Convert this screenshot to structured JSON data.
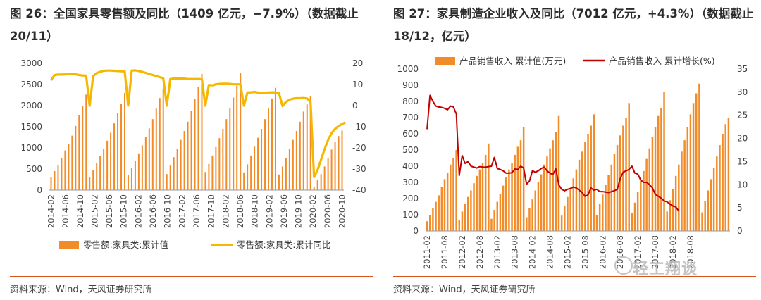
{
  "left": {
    "title": "图 26：全国家具零售额及同比（1409 亿元，−7.9%）（数据截止 20/11）",
    "source": "资料来源：Wind，天风证券研究所"
  },
  "right": {
    "title": "图 27：家具制造企业收入及同比（7012 亿元，+4.3%）（数据截止 18/12，亿元）",
    "source": "资料来源：Wind，天风证券研究所"
  },
  "watermark": "轻工翔谈",
  "chart_data": [
    {
      "type": "bar+line",
      "x_tick_labels": [
        "2014-02",
        "2014-06",
        "2014-10",
        "2015-02",
        "2015-06",
        "2015-10",
        "2016-02",
        "2016-06",
        "2016-10",
        "2017-02",
        "2017-06",
        "2017-10",
        "2018-02",
        "2018-06",
        "2018-10",
        "2019-02",
        "2019-06",
        "2019-10",
        "2020-02",
        "2020-06",
        "2020-10"
      ],
      "y_left_ticks": [
        "0",
        "500",
        "1000",
        "1500",
        "2000",
        "2500",
        "3000"
      ],
      "y_right_ticks": [
        "-40",
        "-30",
        "-20",
        "-10",
        "0",
        "10",
        "20"
      ],
      "ylim_left": [
        0,
        3000
      ],
      "ylim_right": [
        -40,
        20
      ],
      "series": [
        {
          "name": "零售额:家具类:累计值",
          "kind": "bar",
          "axis": "left",
          "color": "#f28c28",
          "values": [
            300,
            450,
            600,
            760,
            940,
            1100,
            1290,
            1520,
            1780,
            1990,
            2260,
            310,
            470,
            640,
            800,
            980,
            1170,
            1360,
            1580,
            1820,
            2050,
            2300,
            350,
            520,
            690,
            870,
            1060,
            1250,
            1460,
            1680,
            1930,
            2180,
            2400,
            380,
            580,
            780,
            980,
            1190,
            1400,
            1620,
            1870,
            2150,
            2450,
            2750,
            430,
            620,
            820,
            1020,
            1230,
            1450,
            1680,
            1940,
            2190,
            2470,
            2780,
            420,
            610,
            820,
            1030,
            1240,
            1450,
            1680,
            1930,
            2170,
            2420,
            370,
            560,
            760,
            970,
            1190,
            1400,
            1620,
            1860,
            2030,
            2220,
            80,
            250,
            380,
            560,
            760,
            960,
            1140,
            1280,
            1409
          ]
        },
        {
          "name": "零售额:家具类:累计同比",
          "kind": "line",
          "axis": "right",
          "color": "#f5b800",
          "values": [
            12,
            14.5,
            14.7,
            14.7,
            14.8,
            15,
            15,
            14.8,
            14.5,
            14.3,
            14.2,
            0,
            14,
            15.4,
            16,
            16.5,
            16.6,
            16.6,
            16.5,
            16.4,
            16.3,
            16.2,
            0,
            16.6,
            16.7,
            16.4,
            16,
            15.5,
            15,
            14.5,
            14,
            13.5,
            13,
            0,
            12.6,
            12.8,
            12.8,
            12.8,
            12.8,
            12.6,
            12.6,
            12.6,
            12.6,
            12.5,
            0,
            9.8,
            9.6,
            10.1,
            10.3,
            10.4,
            10.4,
            10.3,
            10.1,
            10.1,
            10.1,
            0,
            6.2,
            6.3,
            6.5,
            6.2,
            6.1,
            6.1,
            6.2,
            6.3,
            6.2,
            5.9,
            -0.2,
            1.8,
            2.8,
            3.3,
            3.5,
            3.5,
            3.6,
            3.4,
            1.8,
            -33.8,
            -30.5,
            -25.6,
            -20.6,
            -16.3,
            -13,
            -11,
            -9.7,
            -8.7,
            -7.9
          ]
        }
      ]
    },
    {
      "type": "bar+line",
      "x_tick_labels": [
        "2011-02",
        "2011-08",
        "2012-02",
        "2012-08",
        "2013-02",
        "2013-08",
        "2014-02",
        "2014-08",
        "2015-02",
        "2015-08",
        "2016-02",
        "2016-08",
        "2017-02",
        "2017-08",
        "2018-02",
        "2018-08"
      ],
      "y_left_ticks": [
        "0",
        "100",
        "200",
        "300",
        "400",
        "500",
        "600",
        "700",
        "800",
        "900",
        "1000"
      ],
      "y_right_ticks": [
        "0",
        "5",
        "10",
        "15",
        "20",
        "25",
        "30",
        "35"
      ],
      "ylim_left": [
        0,
        1000
      ],
      "ylim_right": [
        0,
        35
      ],
      "series": [
        {
          "name": "产品销售收入 累计值(万元)",
          "kind": "bar",
          "axis": "left",
          "color": "#f28c28",
          "values": [
            60,
            100,
            140,
            180,
            220,
            270,
            320,
            360,
            410,
            450,
            500,
            70,
            120,
            170,
            210,
            250,
            295,
            340,
            380,
            420,
            470,
            540,
            75,
            130,
            180,
            230,
            280,
            330,
            380,
            420,
            470,
            520,
            560,
            640,
            85,
            140,
            195,
            250,
            300,
            350,
            410,
            460,
            510,
            560,
            610,
            710,
            95,
            155,
            210,
            265,
            325,
            380,
            440,
            490,
            550,
            600,
            650,
            720,
            100,
            165,
            225,
            285,
            345,
            410,
            475,
            530,
            590,
            650,
            700,
            790,
            110,
            175,
            240,
            310,
            370,
            445,
            510,
            580,
            640,
            710,
            760,
            860,
            120,
            190,
            260,
            340,
            410,
            490,
            560,
            640,
            720,
            790,
            850,
            910,
            115,
            185,
            250,
            320,
            390,
            460,
            530,
            600,
            660,
            700
          ]
        },
        {
          "name": "产品销售收入 累计增长(%)",
          "kind": "line",
          "axis": "right",
          "color": "#c00000",
          "values": [
            22,
            29.3,
            28,
            27,
            26.8,
            26.7,
            26.5,
            26.2,
            27,
            26.8,
            25.3,
            12,
            16.3,
            14.6,
            15,
            14,
            13.8,
            13.6,
            13.9,
            13.8,
            13.8,
            13.9,
            14,
            15.9,
            13.5,
            13.3,
            13,
            12.5,
            12.5,
            12.6,
            13.4,
            13.3,
            14,
            13.6,
            10.1,
            10.8,
            13,
            12.7,
            13,
            13.5,
            13.8,
            13,
            12.5,
            12.2,
            13.4,
            10,
            9,
            8.7,
            9,
            9.2,
            9.5,
            9.3,
            8.8,
            8.3,
            7.5,
            7.8,
            9.3,
            8.8,
            9,
            8.5,
            8.5,
            8.4,
            8.3,
            8.5,
            8.7,
            9,
            11.3,
            12.7,
            13,
            13.3,
            14,
            12.5,
            12.3,
            11,
            10.5,
            10.5,
            10,
            9.3,
            7.9,
            7.5,
            7.1,
            6.5,
            6.3,
            5.8,
            5.4,
            5.2,
            4.3
          ]
        }
      ]
    }
  ]
}
